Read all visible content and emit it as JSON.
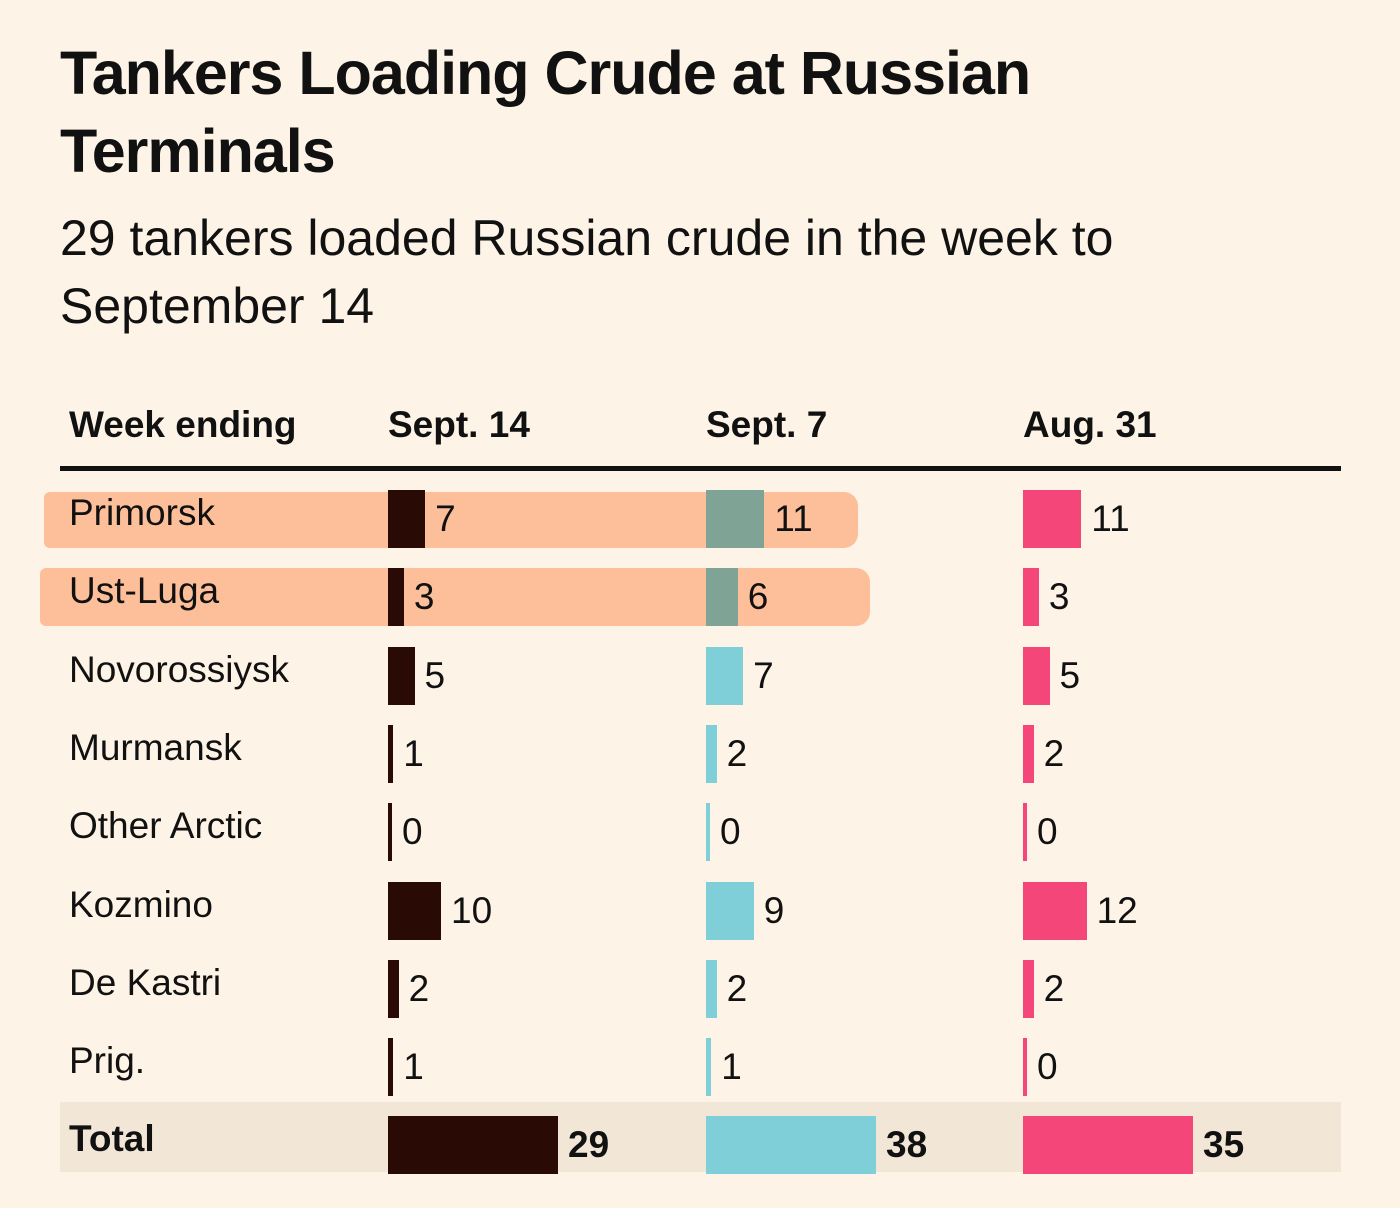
{
  "title": "Tankers Loading Crude at Russian Terminals",
  "subtitle": "29 tankers loaded Russian crude in the week to September 14",
  "chart_data": {
    "type": "bar",
    "row_header": "Week ending",
    "categories": [
      "Primorsk",
      "Ust-Luga",
      "Novorossiysk",
      "Murmansk",
      "Other Arctic",
      "Kozmino",
      "De Kastri",
      "Prig."
    ],
    "series": [
      {
        "name": "Sept. 14",
        "color": "#2a0a05",
        "values": [
          7,
          3,
          5,
          1,
          0,
          10,
          2,
          1
        ],
        "total": 29
      },
      {
        "name": "Sept. 7",
        "color": "#7ecfd8",
        "highlight_color": "#7fa394",
        "values": [
          11,
          6,
          7,
          2,
          0,
          9,
          2,
          1
        ],
        "total": 38
      },
      {
        "name": "Aug. 31",
        "color": "#f5467a",
        "values": [
          11,
          3,
          5,
          2,
          0,
          12,
          2,
          0
        ],
        "total": 35
      }
    ],
    "total_label": "Total",
    "highlighted_rows": [
      "Primorsk",
      "Ust-Luga"
    ],
    "highlight_color": "#fdbf9a"
  }
}
